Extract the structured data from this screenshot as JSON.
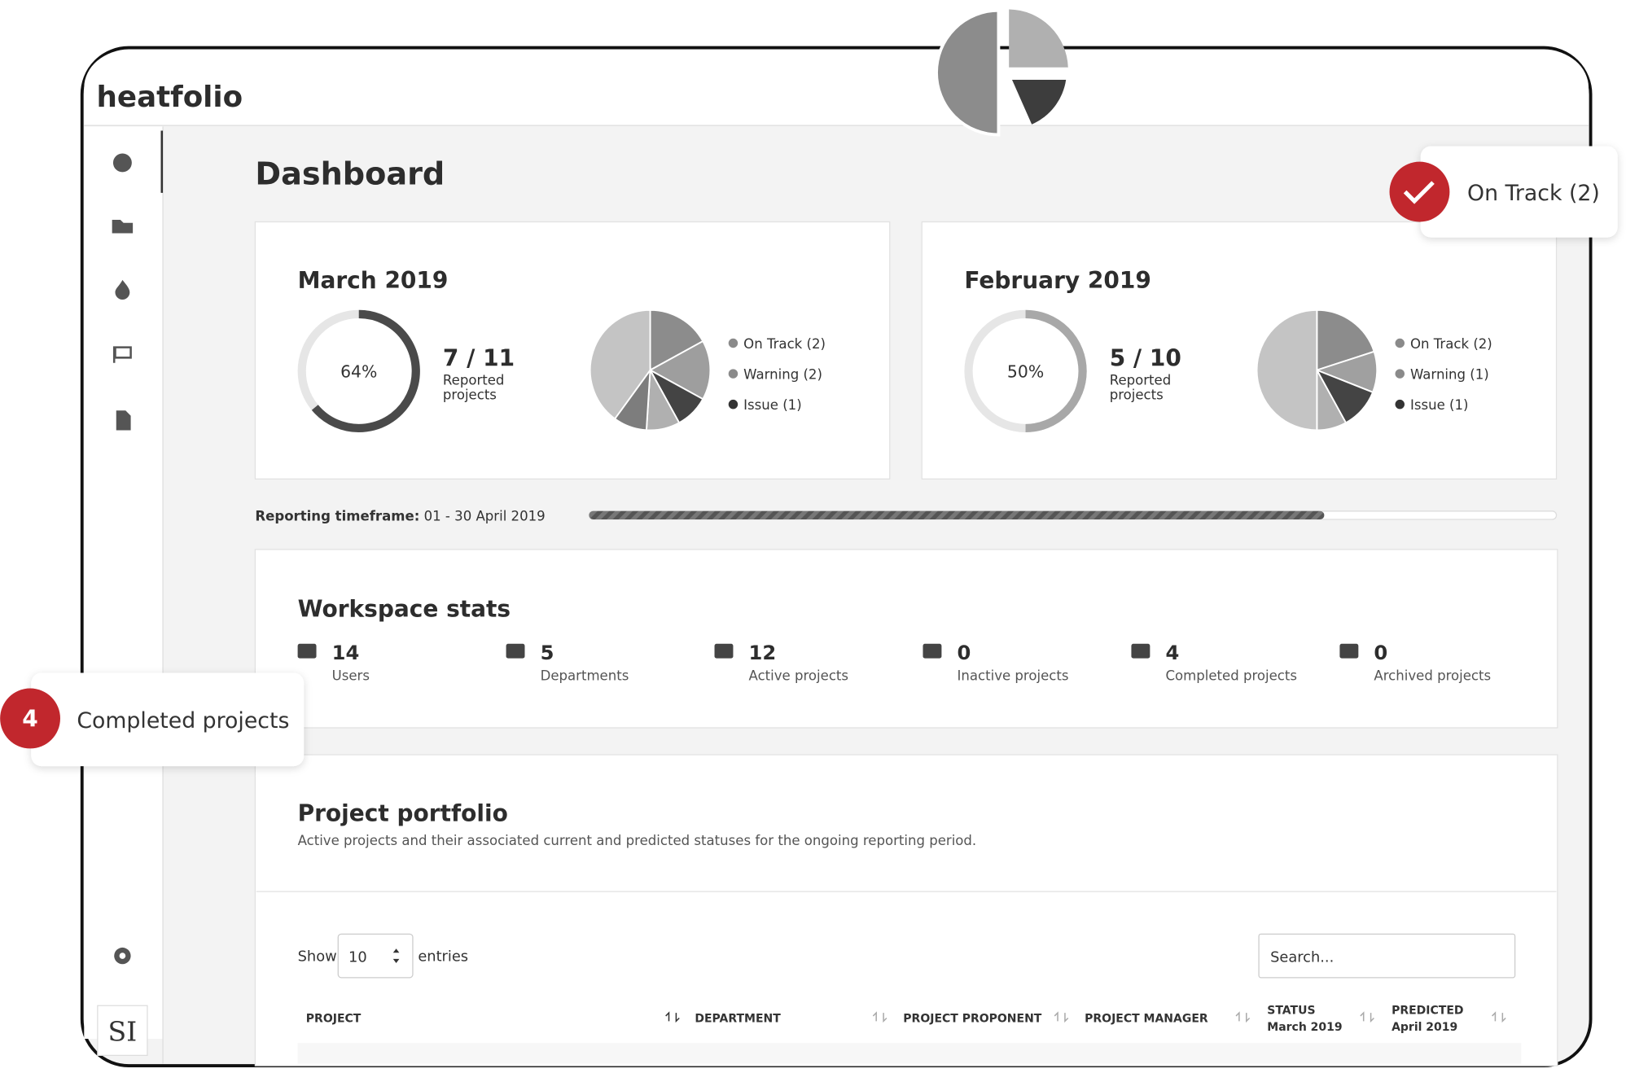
{
  "brand": "heatfolio",
  "page_title": "Dashboard",
  "nav": [
    "dashboard",
    "projects",
    "heat",
    "milestones",
    "reports",
    "settings"
  ],
  "avatar": "SI",
  "months": [
    {
      "title": "March 2019",
      "donut": {
        "value": 64,
        "label": "64%"
      },
      "count": "7 / 11",
      "count_caption": [
        "Reported",
        "projects"
      ],
      "legend": [
        {
          "label": "On Track (2)",
          "color": "#8a8a8a"
        },
        {
          "label": "Warning (2)",
          "color": "#8a8a8a"
        },
        {
          "label": "Issue (1)",
          "color": "#333333"
        }
      ],
      "slices": [
        {
          "value": 17,
          "color": "#8c8c8c"
        },
        {
          "value": 16,
          "color": "#9e9e9e"
        },
        {
          "value": 9,
          "color": "#444444"
        },
        {
          "value": 9,
          "color": "#b0b0b0"
        },
        {
          "value": 9,
          "color": "#7d7d7d"
        },
        {
          "value": 40,
          "color": "#c4c4c4"
        }
      ],
      "donut_color": "#4a4a4a"
    },
    {
      "title": "February 2019",
      "donut": {
        "value": 50,
        "label": "50%"
      },
      "count": "5 / 10",
      "count_caption": [
        "Reported",
        "projects"
      ],
      "legend": [
        {
          "label": "On Track (2)",
          "color": "#8a8a8a"
        },
        {
          "label": "Warning (1)",
          "color": "#8a8a8a"
        },
        {
          "label": "Issue (1)",
          "color": "#333333"
        }
      ],
      "slices": [
        {
          "value": 20,
          "color": "#8c8c8c"
        },
        {
          "value": 11,
          "color": "#a0a0a0"
        },
        {
          "value": 11,
          "color": "#444444"
        },
        {
          "value": 8,
          "color": "#b0b0b0"
        },
        {
          "value": 50,
          "color": "#c4c4c4"
        }
      ],
      "donut_color": "#a8a8a8"
    }
  ],
  "timeframe": {
    "label": "Reporting timeframe:",
    "value": "01 - 30 April 2019",
    "progress": 76
  },
  "workspace": {
    "title": "Workspace stats",
    "stats": [
      {
        "value": "14",
        "label": "Users"
      },
      {
        "value": "5",
        "label": "Departments"
      },
      {
        "value": "12",
        "label": "Active projects"
      },
      {
        "value": "0",
        "label": "Inactive projects"
      },
      {
        "value": "4",
        "label": "Completed projects"
      },
      {
        "value": "0",
        "label": "Archived projects"
      }
    ]
  },
  "portfolio": {
    "title": "Project portfolio",
    "subtitle": "Active projects and their associated current and predicted statuses for the ongoing reporting period.",
    "show": "Show",
    "entries_value": "10",
    "entries": "entries",
    "search_placeholder": "Search...",
    "columns": [
      [
        "PROJECT"
      ],
      [
        "DEPARTMENT"
      ],
      [
        "PROJECT PROPONENT"
      ],
      [
        "PROJECT MANAGER"
      ],
      [
        "STATUS",
        "March 2019"
      ],
      [
        "PREDICTED",
        "April 2019"
      ]
    ]
  },
  "callouts": {
    "on_track": "On Track (2)",
    "badge": "4",
    "completed": "Completed projects"
  }
}
